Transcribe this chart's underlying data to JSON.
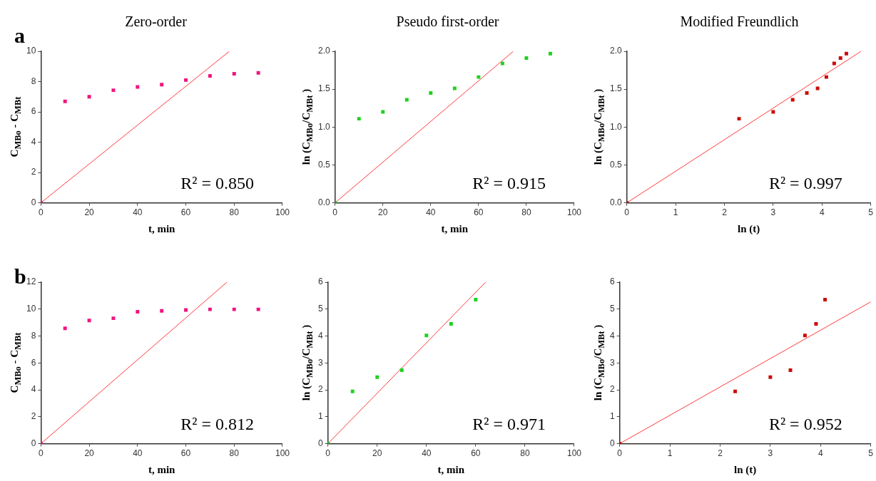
{
  "chart_data": [
    {
      "type": "scatter",
      "title": "Zero-order",
      "xlabel": "t, min",
      "ylabel": "C$_{MBo}$ - C$_{MBt}$",
      "annotations": [
        "a",
        "R² = 0.850"
      ],
      "xlim": [
        0,
        100
      ],
      "xticks": [
        0,
        20,
        40,
        60,
        80,
        100
      ],
      "ylim": [
        0,
        10
      ],
      "yticks": [
        0,
        2,
        4,
        6,
        8,
        10
      ],
      "grid": false,
      "legend": false,
      "marker": "square",
      "series": [
        {
          "type": "line",
          "color": "#ff3b3b",
          "x": [
            0,
            78
          ],
          "values": [
            0,
            10
          ],
          "marker": "none"
        },
        {
          "color": "#f0147e",
          "x": [
            0,
            10,
            20,
            30,
            40,
            50,
            60,
            70,
            80,
            90
          ],
          "values": [
            0,
            6.7,
            7.0,
            7.43,
            7.65,
            7.8,
            8.1,
            8.38,
            8.52,
            8.58
          ]
        }
      ]
    },
    {
      "type": "scatter",
      "title": "Pseudo first-order",
      "xlabel": "t, min",
      "ylabel": "ln (C$_{MBo}$/C$_{MBt}$ )",
      "annotations": [
        null,
        "R² = 0.915"
      ],
      "xlim": [
        0,
        100
      ],
      "xticks": [
        0,
        20,
        40,
        60,
        80,
        100
      ],
      "ylim": [
        0,
        2
      ],
      "yticks": [
        {
          "value": 0,
          "label": "0.0"
        },
        {
          "value": 0.5,
          "label": "0.5"
        },
        {
          "value": 1,
          "label": "1.0"
        },
        {
          "value": 1.5,
          "label": "1.5"
        },
        {
          "value": 2,
          "label": "2.0"
        }
      ],
      "grid": false,
      "legend": false,
      "marker": "square",
      "series": [
        {
          "type": "line",
          "color": "#ff3b3b",
          "x": [
            0,
            74.5
          ],
          "values": [
            0,
            2
          ],
          "marker": "none"
        },
        {
          "color": "#1ed21e",
          "x": [
            0,
            10,
            20,
            30,
            40,
            50,
            60,
            70,
            80,
            90
          ],
          "values": [
            0,
            1.11,
            1.2,
            1.36,
            1.45,
            1.51,
            1.66,
            1.84,
            1.91,
            1.97
          ]
        }
      ]
    },
    {
      "type": "scatter",
      "title": "Modified Freundlich",
      "xlabel": "ln (t)",
      "ylabel": "ln (C$_{MBo}$/C$_{MBt}$ )",
      "annotations": [
        null,
        "R² = 0.997"
      ],
      "xlim": [
        0,
        5
      ],
      "xticks": [
        0,
        1,
        2,
        3,
        4,
        5
      ],
      "ylim": [
        0,
        2
      ],
      "yticks": [
        {
          "value": 0,
          "label": "0.0"
        },
        {
          "value": 0.5,
          "label": "0.5"
        },
        {
          "value": 1,
          "label": "1.0"
        },
        {
          "value": 1.5,
          "label": "1.5"
        },
        {
          "value": 2,
          "label": "2.0"
        }
      ],
      "grid": false,
      "legend": false,
      "marker": "square",
      "series": [
        {
          "type": "line",
          "color": "#ff3b3b",
          "x": [
            0,
            4.8
          ],
          "values": [
            0,
            2
          ],
          "marker": "none"
        },
        {
          "color": "#cc0a0a",
          "x": [
            0,
            2.3,
            3.0,
            3.4,
            3.69,
            3.91,
            4.09,
            4.25,
            4.38,
            4.5
          ],
          "values": [
            0,
            1.11,
            1.2,
            1.36,
            1.45,
            1.51,
            1.66,
            1.84,
            1.91,
            1.97
          ]
        }
      ]
    },
    {
      "type": "scatter",
      "xlabel": "t, min",
      "ylabel": "C$_{MBo}$ - C$_{MBt}$",
      "annotations": [
        "b",
        "R² = 0.812"
      ],
      "xlim": [
        0,
        100
      ],
      "xticks": [
        0,
        20,
        40,
        60,
        80,
        100
      ],
      "ylim": [
        0,
        12
      ],
      "yticks": [
        0,
        2,
        4,
        6,
        8,
        10,
        12
      ],
      "grid": false,
      "legend": false,
      "marker": "square",
      "series": [
        {
          "type": "line",
          "color": "#ff3b3b",
          "x": [
            0,
            77
          ],
          "values": [
            0,
            12
          ],
          "marker": "none"
        },
        {
          "color": "#f0147e",
          "x": [
            0,
            10,
            20,
            30,
            40,
            50,
            60,
            70,
            80,
            90
          ],
          "values": [
            0,
            8.57,
            9.15,
            9.32,
            9.8,
            9.87,
            9.93,
            9.98,
            9.98,
            9.98
          ]
        }
      ]
    },
    {
      "type": "scatter",
      "xlabel": "t, min",
      "ylabel": "ln (C$_{MBo}$/C$_{MBt}$ )",
      "annotations": [
        null,
        "R² = 0.971"
      ],
      "xlim": [
        0,
        100
      ],
      "xticks": [
        0,
        20,
        40,
        60,
        80,
        100
      ],
      "ylim": [
        0,
        6
      ],
      "yticks": [
        0,
        1,
        2,
        3,
        4,
        5,
        6
      ],
      "grid": false,
      "legend": false,
      "marker": "square",
      "series": [
        {
          "type": "line",
          "color": "#ff3b3b",
          "x": [
            0,
            64
          ],
          "values": [
            0,
            6
          ],
          "marker": "none"
        },
        {
          "color": "#1ed21e",
          "x": [
            0,
            10,
            20,
            30,
            40,
            50,
            60
          ],
          "values": [
            0,
            1.94,
            2.47,
            2.73,
            4.02,
            4.45,
            5.35
          ]
        }
      ]
    },
    {
      "type": "scatter",
      "xlabel": "ln (t)",
      "ylabel": "ln (C$_{MBo}$/C$_{MBt}$ )",
      "annotations": [
        null,
        "R² = 0.952"
      ],
      "xlim": [
        0,
        5
      ],
      "xticks": [
        0,
        1,
        2,
        3,
        4,
        5
      ],
      "ylim": [
        0,
        6
      ],
      "yticks": [
        0,
        1,
        2,
        3,
        4,
        5,
        6
      ],
      "grid": false,
      "legend": false,
      "marker": "square",
      "series": [
        {
          "type": "line",
          "color": "#ff3b3b",
          "x": [
            0,
            5
          ],
          "values": [
            0,
            5.27
          ],
          "marker": "none"
        },
        {
          "color": "#cc0a0a",
          "x": [
            0,
            2.3,
            3.0,
            3.4,
            3.69,
            3.91,
            4.09
          ],
          "values": [
            0,
            1.94,
            2.47,
            2.73,
            4.02,
            4.45,
            5.35
          ]
        }
      ]
    }
  ]
}
